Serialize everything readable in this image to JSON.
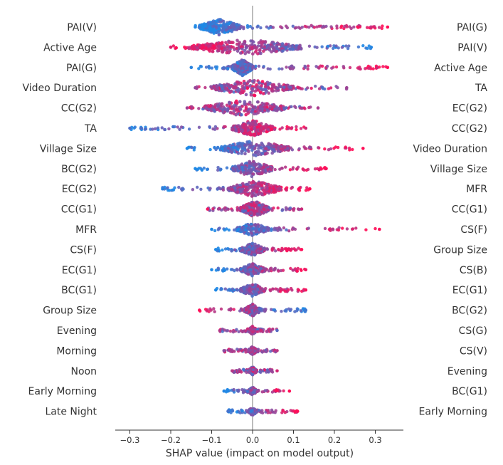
{
  "chart_data": {
    "type": "scatter",
    "subtype": "shap-beeswarm",
    "title": "",
    "xlabel": "SHAP value (impact on model output)",
    "ylabel": "",
    "xlim": [
      -0.33,
      0.36
    ],
    "xticks": [
      -0.3,
      -0.2,
      -0.1,
      0.0,
      0.1,
      0.2,
      0.3
    ],
    "xtick_labels": [
      "−0.3",
      "−0.2",
      "−0.1",
      "0.0",
      "0.1",
      "0.2",
      "0.3"
    ],
    "grid": false,
    "legend": "none",
    "colors": {
      "low": "#1e88e5",
      "high": "#ff0d57",
      "mid": "#7d3fd0",
      "zero_line": "#999999",
      "axis": "#333333"
    },
    "features_left": [
      "PAI(V)",
      "Active Age",
      "PAI(G)",
      "Video Duration",
      "CC(G2)",
      "TA",
      "Village Size",
      "BC(G2)",
      "EC(G2)",
      "CC(G1)",
      "MFR",
      "CS(F)",
      "EC(G1)",
      "BC(G1)",
      "Group Size",
      "Evening",
      "Morning",
      "Noon",
      "Early Morning",
      "Late Night"
    ],
    "features_right": [
      "PAI(G)",
      "PAI(V)",
      "Active Age",
      "TA",
      "EC(G2)",
      "CC(G2)",
      "Video Duration",
      "Village Size",
      "MFR",
      "CC(G1)",
      "CS(F)",
      "Group Size",
      "CS(B)",
      "EC(G1)",
      "BC(G2)",
      "CS(G)",
      "CS(V)",
      "Evening",
      "BC(G1)",
      "Early Morning"
    ],
    "series": [
      {
        "feature": "PAI(V)",
        "min": -0.14,
        "max": 0.33,
        "core": [
          -0.13,
          -0.03
        ],
        "high_side": "positive"
      },
      {
        "feature": "Active Age",
        "min": -0.2,
        "max": 0.29,
        "core": [
          -0.15,
          0.12
        ],
        "high_side": "negative"
      },
      {
        "feature": "PAI(G)",
        "min": -0.15,
        "max": 0.33,
        "core": [
          -0.05,
          0.0
        ],
        "high_side": "positive"
      },
      {
        "feature": "Video Duration",
        "min": -0.14,
        "max": 0.23,
        "core": [
          -0.1,
          0.1
        ],
        "high_side": "mixed"
      },
      {
        "feature": "CC(G2)",
        "min": -0.16,
        "max": 0.16,
        "core": [
          -0.12,
          0.08
        ],
        "high_side": "mixed"
      },
      {
        "feature": "TA",
        "min": -0.3,
        "max": 0.13,
        "core": [
          -0.05,
          0.05
        ],
        "high_side": "positive"
      },
      {
        "feature": "Village Size",
        "min": -0.16,
        "max": 0.27,
        "core": [
          -0.08,
          0.09
        ],
        "high_side": "positive"
      },
      {
        "feature": "BC(G2)",
        "min": -0.14,
        "max": 0.18,
        "core": [
          -0.05,
          0.05
        ],
        "high_side": "positive"
      },
      {
        "feature": "EC(G2)",
        "min": -0.22,
        "max": 0.14,
        "core": [
          -0.06,
          0.07
        ],
        "high_side": "positive"
      },
      {
        "feature": "CC(G1)",
        "min": -0.11,
        "max": 0.12,
        "core": [
          -0.03,
          0.04
        ],
        "high_side": "mixed"
      },
      {
        "feature": "MFR",
        "min": -0.1,
        "max": 0.31,
        "core": [
          -0.04,
          0.04
        ],
        "high_side": "positive"
      },
      {
        "feature": "CS(F)",
        "min": -0.09,
        "max": 0.12,
        "core": [
          -0.03,
          0.03
        ],
        "high_side": "positive"
      },
      {
        "feature": "EC(G1)",
        "min": -0.1,
        "max": 0.13,
        "core": [
          -0.03,
          0.03
        ],
        "high_side": "positive"
      },
      {
        "feature": "BC(G1)",
        "min": -0.09,
        "max": 0.13,
        "core": [
          -0.03,
          0.03
        ],
        "high_side": "positive"
      },
      {
        "feature": "Group Size",
        "min": -0.13,
        "max": 0.13,
        "core": [
          -0.02,
          0.02
        ],
        "high_side": "negative"
      },
      {
        "feature": "Evening",
        "min": -0.08,
        "max": 0.06,
        "core": [
          -0.01,
          0.01
        ],
        "high_side": "mixed"
      },
      {
        "feature": "Morning",
        "min": -0.07,
        "max": 0.06,
        "core": [
          -0.01,
          0.01
        ],
        "high_side": "mixed"
      },
      {
        "feature": "Noon",
        "min": -0.05,
        "max": 0.06,
        "core": [
          -0.01,
          0.01
        ],
        "high_side": "mixed"
      },
      {
        "feature": "Early Morning",
        "min": -0.07,
        "max": 0.09,
        "core": [
          -0.01,
          0.01
        ],
        "high_side": "positive"
      },
      {
        "feature": "Late Night",
        "min": -0.06,
        "max": 0.11,
        "core": [
          -0.01,
          0.01
        ],
        "high_side": "positive"
      }
    ]
  }
}
